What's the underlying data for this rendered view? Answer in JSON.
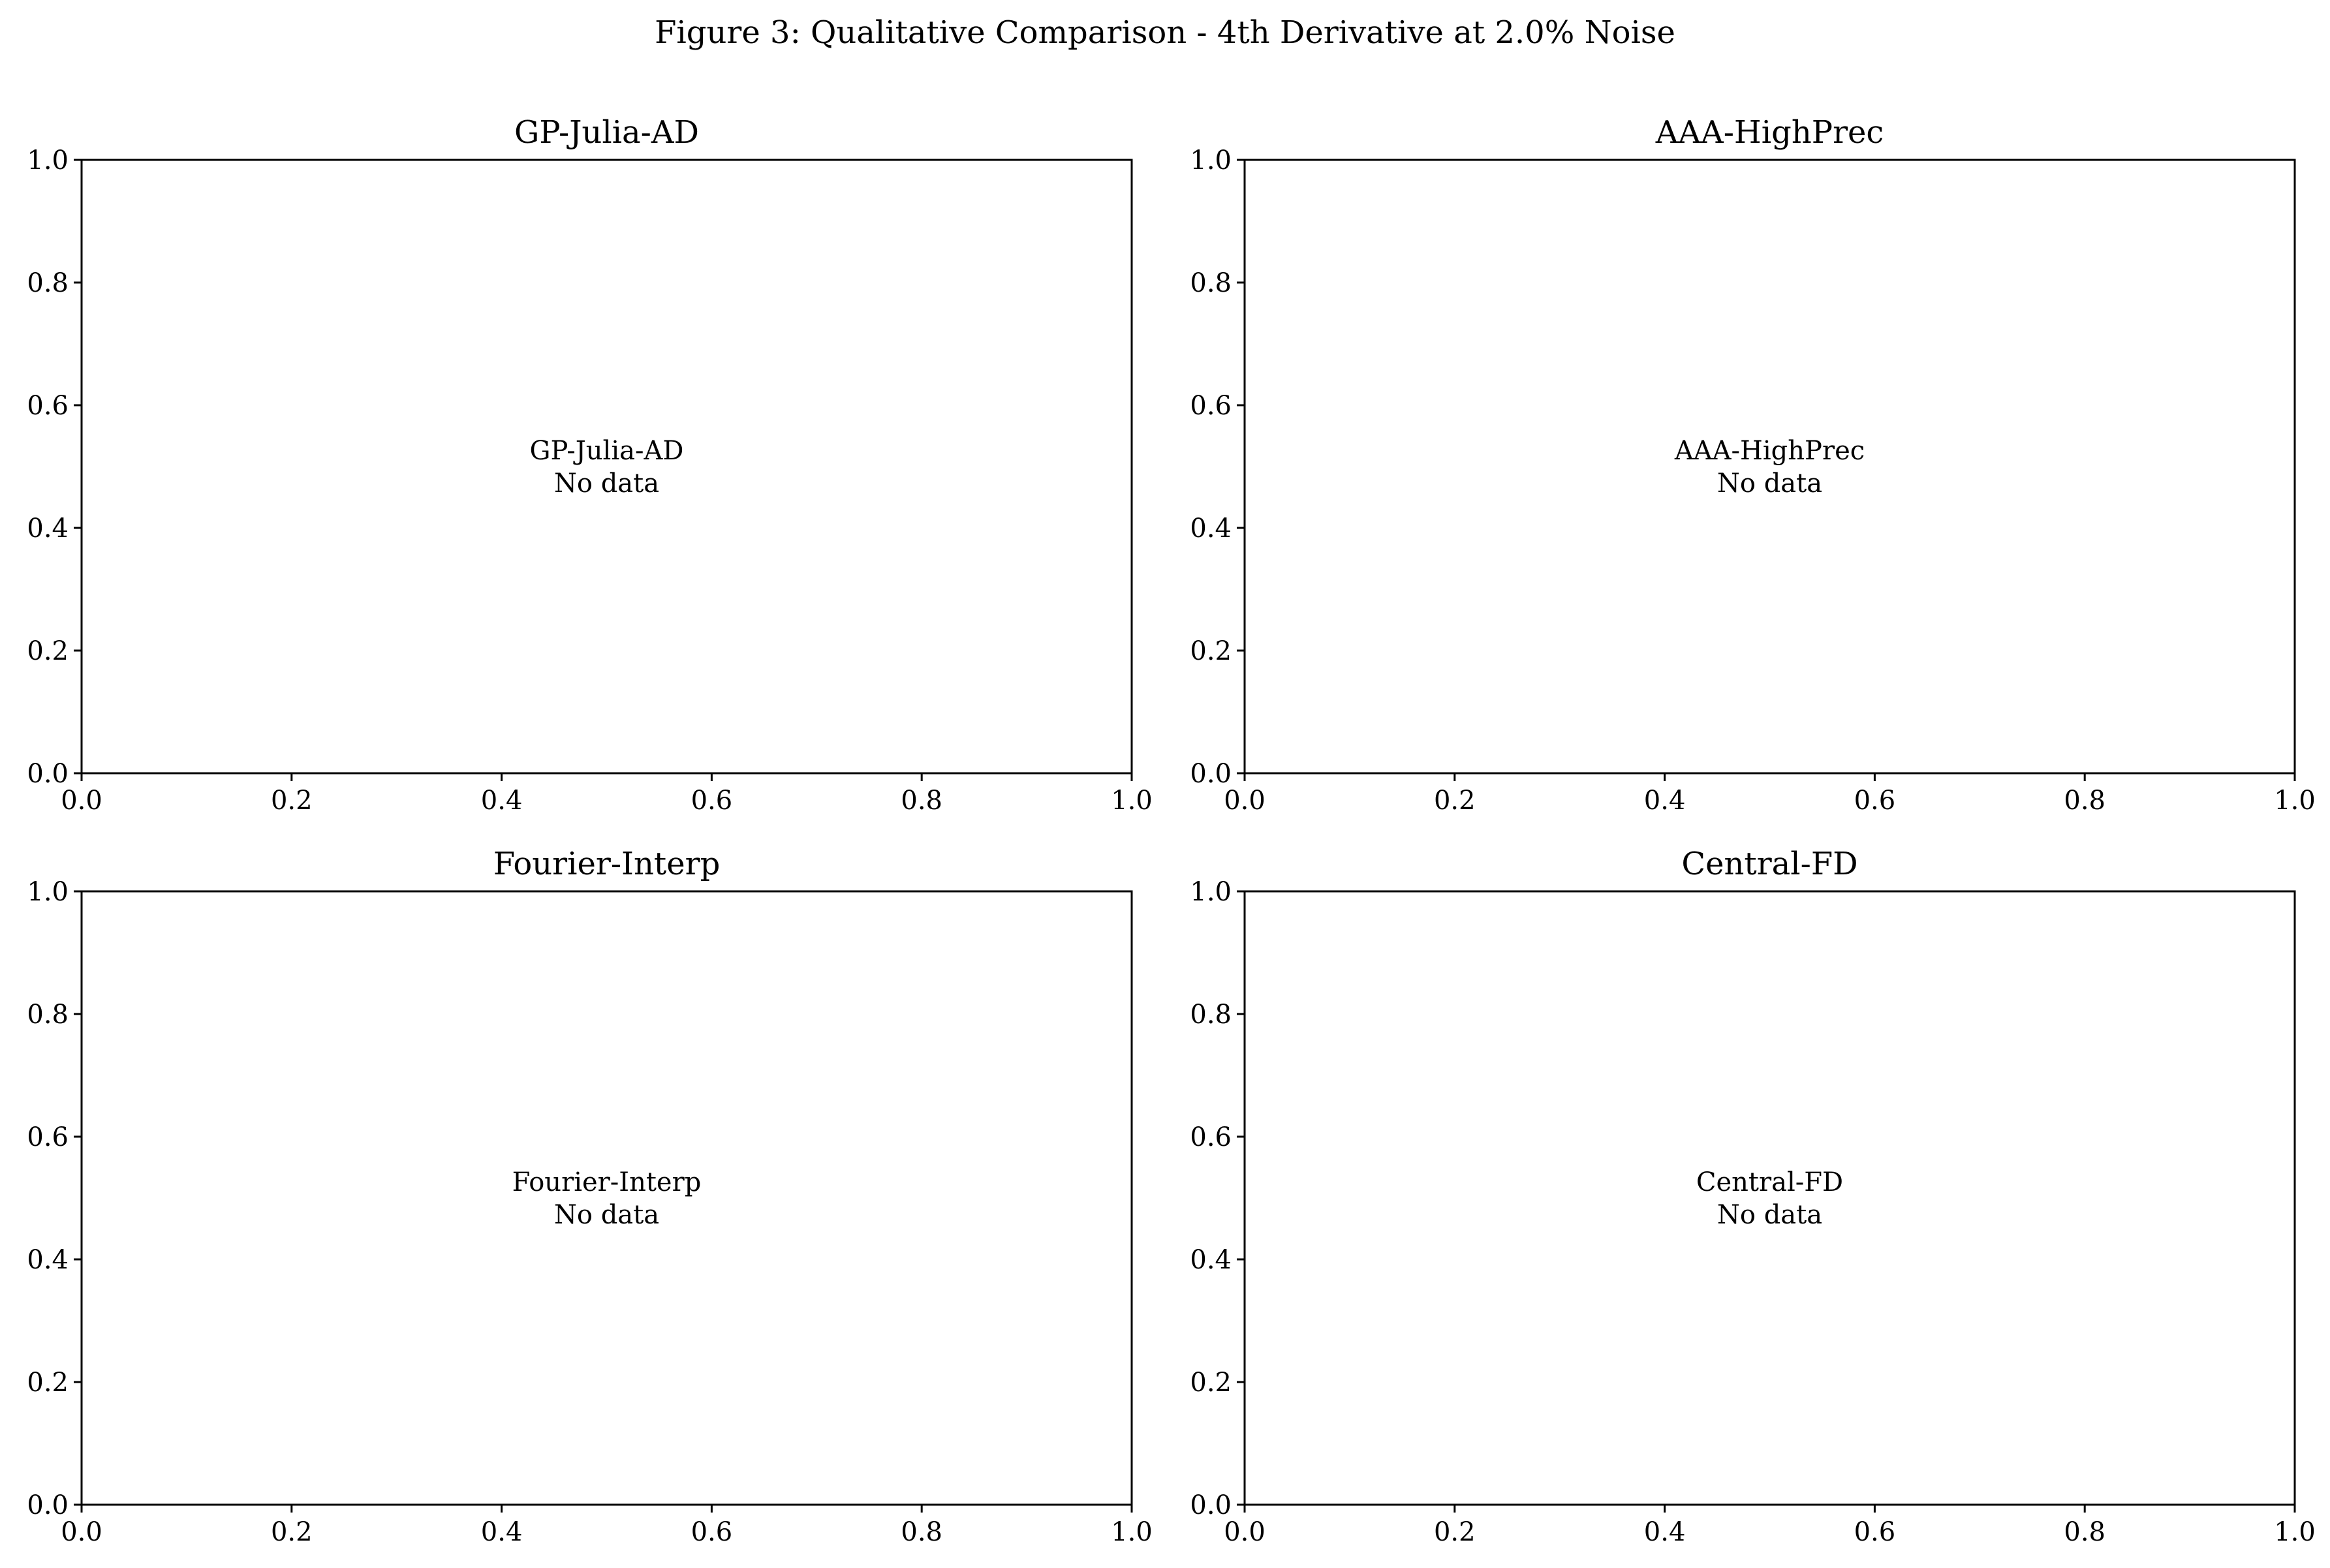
{
  "figure": {
    "title": "Figure 3: Qualitative Comparison - 4th Derivative at 2.0% Noise"
  },
  "chart_data": [
    {
      "type": "line",
      "title": "GP-Julia-AD",
      "xlabel": "",
      "ylabel": "",
      "xlim": [
        0.0,
        1.0
      ],
      "ylim": [
        0.0,
        1.0
      ],
      "x_ticks": [
        "0.0",
        "0.2",
        "0.4",
        "0.6",
        "0.8",
        "1.0"
      ],
      "y_ticks": [
        "0.0",
        "0.2",
        "0.4",
        "0.6",
        "0.8",
        "1.0"
      ],
      "annotation": [
        "GP-Julia-AD",
        "No data"
      ],
      "series": [],
      "grid": false
    },
    {
      "type": "line",
      "title": "AAA-HighPrec",
      "xlabel": "",
      "ylabel": "",
      "xlim": [
        0.0,
        1.0
      ],
      "ylim": [
        0.0,
        1.0
      ],
      "x_ticks": [
        "0.0",
        "0.2",
        "0.4",
        "0.6",
        "0.8",
        "1.0"
      ],
      "y_ticks": [
        "0.0",
        "0.2",
        "0.4",
        "0.6",
        "0.8",
        "1.0"
      ],
      "annotation": [
        "AAA-HighPrec",
        "No data"
      ],
      "series": [],
      "grid": false
    },
    {
      "type": "line",
      "title": "Fourier-Interp",
      "xlabel": "",
      "ylabel": "",
      "xlim": [
        0.0,
        1.0
      ],
      "ylim": [
        0.0,
        1.0
      ],
      "x_ticks": [
        "0.0",
        "0.2",
        "0.4",
        "0.6",
        "0.8",
        "1.0"
      ],
      "y_ticks": [
        "0.0",
        "0.2",
        "0.4",
        "0.6",
        "0.8",
        "1.0"
      ],
      "annotation": [
        "Fourier-Interp",
        "No data"
      ],
      "series": [],
      "grid": false
    },
    {
      "type": "line",
      "title": "Central-FD",
      "xlabel": "",
      "ylabel": "",
      "xlim": [
        0.0,
        1.0
      ],
      "ylim": [
        0.0,
        1.0
      ],
      "x_ticks": [
        "0.0",
        "0.2",
        "0.4",
        "0.6",
        "0.8",
        "1.0"
      ],
      "y_ticks": [
        "0.0",
        "0.2",
        "0.4",
        "0.6",
        "0.8",
        "1.0"
      ],
      "annotation": [
        "Central-FD",
        "No data"
      ],
      "series": [],
      "grid": false
    }
  ]
}
